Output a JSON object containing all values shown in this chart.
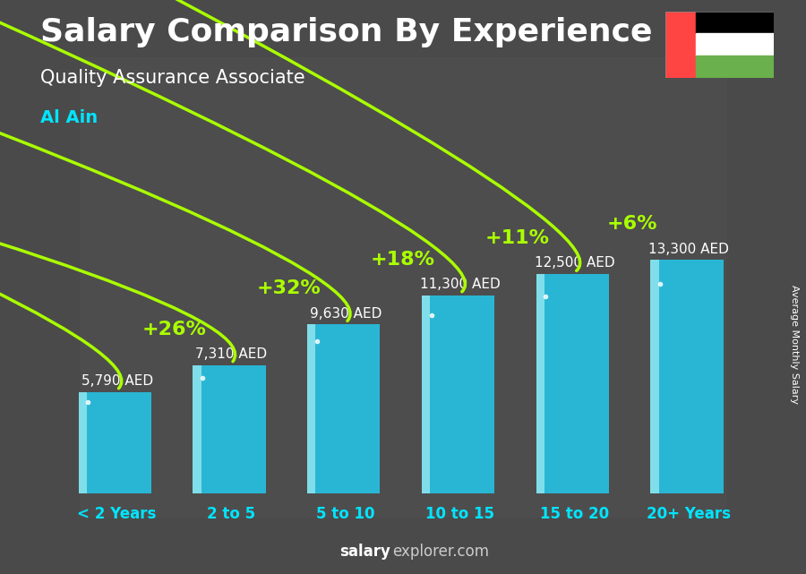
{
  "title": "Salary Comparison By Experience",
  "subtitle": "Quality Assurance Associate",
  "city": "Al Ain",
  "categories": [
    "< 2 Years",
    "2 to 5",
    "5 to 10",
    "10 to 15",
    "15 to 20",
    "20+ Years"
  ],
  "values": [
    5790,
    7310,
    9630,
    11300,
    12500,
    13300
  ],
  "bar_color": "#29b6d4",
  "bar_highlight_color": "#80deea",
  "background_color": "#4a4a4a",
  "title_color": "#ffffff",
  "subtitle_color": "#ffffff",
  "city_color": "#00e5ff",
  "value_label_color": "#ffffff",
  "value_labels": [
    "5,790 AED",
    "7,310 AED",
    "9,630 AED",
    "11,300 AED",
    "12,500 AED",
    "13,300 AED"
  ],
  "pct_labels": [
    "+26%",
    "+32%",
    "+18%",
    "+11%",
    "+6%"
  ],
  "pct_color": "#aaff00",
  "arrow_color": "#aaff00",
  "watermark_bold": "salary",
  "watermark_normal": "explorer.com",
  "ylabel": "Average Monthly Salary",
  "ylim": [
    0,
    17000
  ],
  "bar_width": 0.6,
  "title_fontsize": 26,
  "subtitle_fontsize": 15,
  "city_fontsize": 14,
  "pct_fontsize": 16,
  "value_fontsize": 11,
  "xtick_fontsize": 12,
  "flag_red": "#ff4444",
  "flag_green": "#6ab04c",
  "flag_white": "#ffffff",
  "flag_black": "#000000"
}
